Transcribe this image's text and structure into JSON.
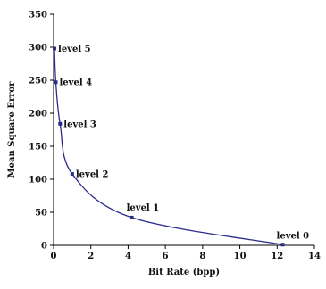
{
  "chart_data": {
    "type": "line",
    "title": "",
    "xlabel": "Bit Rate (bpp)",
    "ylabel": "Mean Square Error",
    "xlim": [
      0,
      14
    ],
    "ylim": [
      0,
      350
    ],
    "xticks": [
      "0",
      "2",
      "4",
      "6",
      "8",
      "10",
      "12",
      "14"
    ],
    "yticks": [
      "0",
      "50",
      "100",
      "150",
      "200",
      "250",
      "300",
      "350"
    ],
    "grid": false,
    "legend": "none",
    "line_color": "#2b2b8c",
    "series": [
      {
        "points": [
          {
            "x": 0.05,
            "y": 298,
            "label": "level 5"
          },
          {
            "x": 0.12,
            "y": 247,
            "label": "level 4"
          },
          {
            "x": 0.35,
            "y": 184,
            "label": "level 3"
          },
          {
            "x": 1.0,
            "y": 108,
            "label": "level 2"
          },
          {
            "x": 4.2,
            "y": 42,
            "label": "level 1"
          },
          {
            "x": 12.3,
            "y": 1,
            "label": "level 0"
          }
        ]
      }
    ]
  }
}
